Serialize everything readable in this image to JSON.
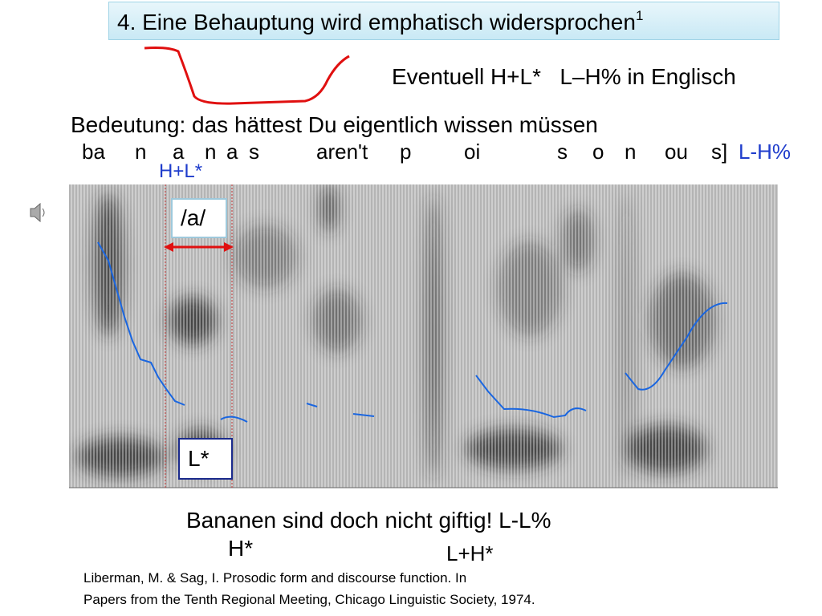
{
  "title": {
    "text": "4. Eine Behauptung wird emphatisch widersprochen",
    "footnote": "1"
  },
  "note": "Eventuell H+L*   L–H% in Englisch",
  "meaning": "Bedeutung: das hättest Du eigentlich wissen müssen",
  "segments": [
    "ba",
    "n",
    "a",
    "n",
    "a",
    "s",
    "aren't",
    "p",
    "oi",
    "s",
    "o",
    "n",
    "ou",
    "s]"
  ],
  "boundary_tone": "L-H%",
  "accent_label": "H+L*",
  "vowel_label": "/a/",
  "low_label": "L*",
  "sentence": "Bananen sind doch nicht giftig! L-L%",
  "sentence_accents": [
    "H*",
    "L+H*"
  ],
  "reference": [
    "Liberman, M. & Sag, I. Prosodic form and discourse function. In",
    "Papers from the Tenth Regional Meeting, Chicago Linguistic Society, 1974."
  ]
}
